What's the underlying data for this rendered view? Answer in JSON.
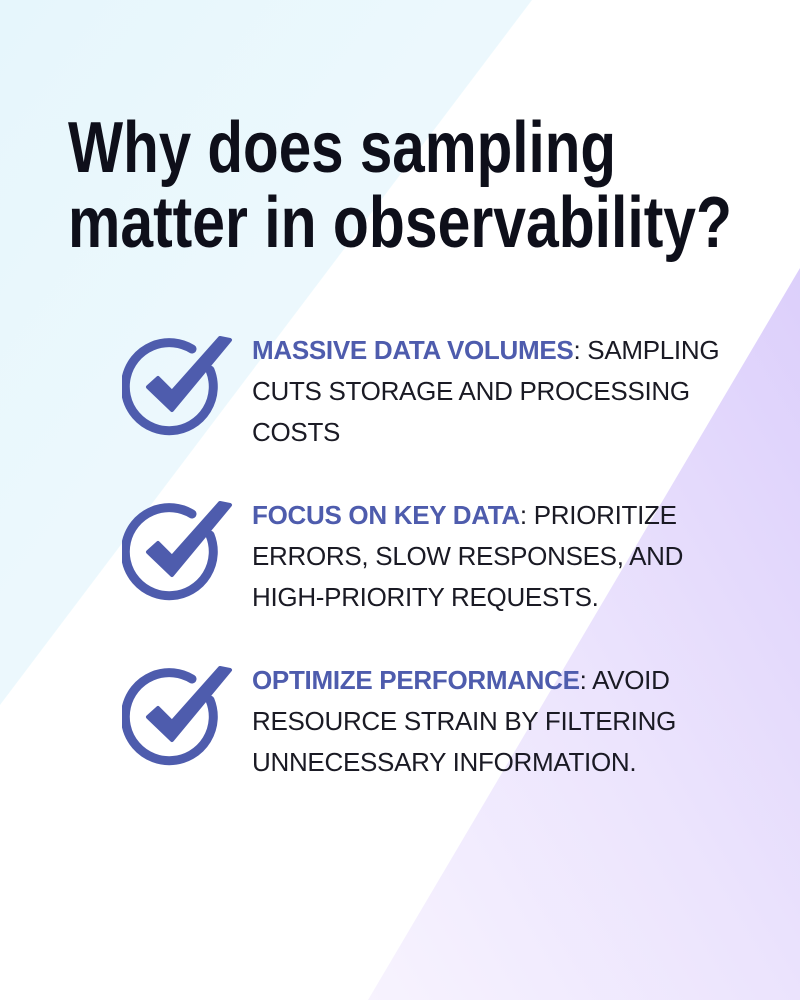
{
  "title": [
    "Why does sampling",
    "matter in observability?"
  ],
  "items": [
    {
      "heading": "MASSIVE DATA VOLUMES",
      "text": ": SAMPLING CUTS STORAGE AND PROCESSING COSTS"
    },
    {
      "heading": "FOCUS ON KEY DATA",
      "text": ": PRIORITIZE ERRORS, SLOW RESPONSES, AND HIGH-PRIORITY REQUESTS."
    },
    {
      "heading": "OPTIMIZE PERFORMANCE",
      "text": ": AVOID RESOURCE STRAIN BY FILTERING UNNECESSARY INFORMATION."
    }
  ]
}
